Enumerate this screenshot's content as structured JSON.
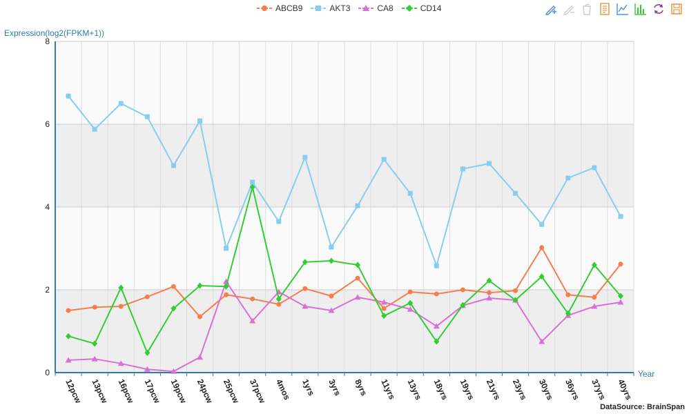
{
  "legend": {
    "items": [
      {
        "label": "ABCB9",
        "color": "#f47e4d",
        "marker": "circle"
      },
      {
        "label": "AKT3",
        "color": "#87cdf0",
        "marker": "square"
      },
      {
        "label": "CA8",
        "color": "#da70d6",
        "marker": "triangle"
      },
      {
        "label": "CD14",
        "color": "#32cd32",
        "marker": "diamond"
      }
    ]
  },
  "toolbox": [
    {
      "name": "data-zoom-icon",
      "color": "#4a90d9"
    },
    {
      "name": "zoom-reset-icon",
      "color": "#cccccc"
    },
    {
      "name": "restore-icon",
      "color": "#cccccc"
    },
    {
      "name": "data-view-icon",
      "color": "#e8923c"
    },
    {
      "name": "line-chart-icon",
      "color": "#4a90d9"
    },
    {
      "name": "bar-chart-icon",
      "color": "#32cd32"
    },
    {
      "name": "refresh-icon",
      "color": "#8b3a8b"
    },
    {
      "name": "save-image-icon",
      "color": "#e8923c"
    }
  ],
  "axis_color": "#2e7ab0",
  "source_text": "DataSource: BrainSpan",
  "chart_data": {
    "type": "line",
    "ylabel": "Expression(log2(FPKM+1))",
    "xlabel": "Year",
    "ylim": [
      0,
      8
    ],
    "y_ticks": [
      0,
      2,
      4,
      6,
      8
    ],
    "grid": true,
    "legend_position": "top-center",
    "categories": [
      "12pcw",
      "13pcw",
      "16pcw",
      "17pcw",
      "19pcw",
      "24pcw",
      "25pcw",
      "37pcw",
      "4mos",
      "1yrs",
      "3yrs",
      "8yrs",
      "11yrs",
      "13yrs",
      "18yrs",
      "19yrs",
      "21yrs",
      "23yrs",
      "30yrs",
      "36yrs",
      "37yrs",
      "40yrs"
    ],
    "series": [
      {
        "name": "ABCB9",
        "values": [
          1.5,
          1.58,
          1.6,
          1.83,
          2.08,
          1.35,
          1.88,
          1.78,
          1.65,
          2.03,
          1.85,
          2.28,
          1.55,
          1.95,
          1.9,
          2.0,
          1.93,
          1.98,
          3.02,
          1.88,
          1.82,
          2.62
        ]
      },
      {
        "name": "AKT3",
        "values": [
          6.68,
          5.88,
          6.5,
          6.18,
          5.0,
          6.08,
          3.0,
          4.6,
          3.65,
          5.2,
          3.03,
          4.03,
          5.15,
          4.33,
          2.58,
          4.92,
          5.05,
          4.33,
          3.58,
          4.7,
          4.95,
          3.77
        ]
      },
      {
        "name": "CA8",
        "values": [
          0.3,
          0.33,
          0.22,
          0.08,
          0.03,
          0.37,
          2.2,
          1.25,
          1.95,
          1.6,
          1.5,
          1.82,
          1.7,
          1.53,
          1.12,
          1.62,
          1.8,
          1.75,
          0.75,
          1.38,
          1.6,
          1.7
        ]
      },
      {
        "name": "CD14",
        "values": [
          0.88,
          0.7,
          2.05,
          0.48,
          1.55,
          2.1,
          2.08,
          4.48,
          1.78,
          2.67,
          2.7,
          2.6,
          1.37,
          1.68,
          0.75,
          1.63,
          2.22,
          1.75,
          2.32,
          1.43,
          2.6,
          1.85
        ]
      }
    ]
  }
}
